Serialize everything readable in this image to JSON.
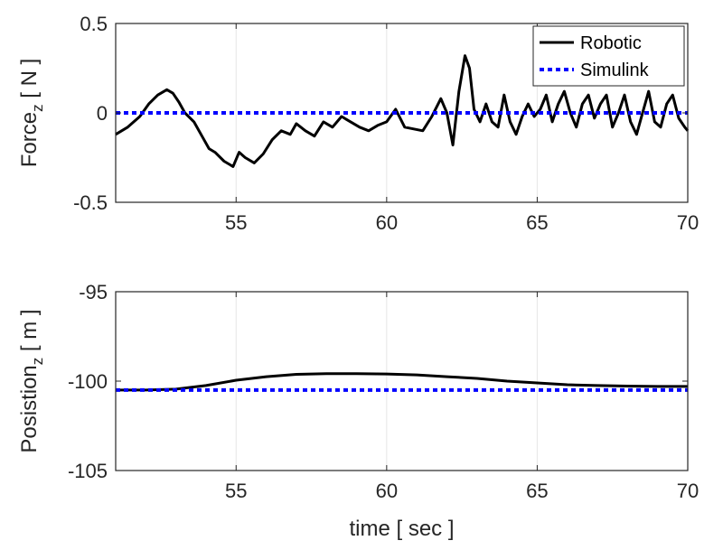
{
  "chart_data": [
    {
      "type": "line",
      "xlabel": "",
      "ylabel": "Force",
      "ylabel_subscript": "z",
      "ylabel_unit": " [ N ]",
      "xlim": [
        51,
        70
      ],
      "ylim": [
        -0.5,
        0.5
      ],
      "x_ticks": [
        "55",
        "60",
        "65",
        "70"
      ],
      "y_ticks": [
        "-0.5",
        "0",
        "0.5"
      ],
      "grid": "vertical",
      "legend": {
        "position": "top-right",
        "entries": [
          "Robotic",
          "Simulink"
        ]
      },
      "series": [
        {
          "name": "Robotic",
          "color": "#000000",
          "style": "solid",
          "x": [
            51.0,
            51.4,
            51.8,
            52.1,
            52.4,
            52.7,
            52.9,
            53.1,
            53.3,
            53.6,
            53.9,
            54.1,
            54.3,
            54.6,
            54.9,
            55.1,
            55.3,
            55.6,
            55.9,
            56.2,
            56.5,
            56.8,
            57.0,
            57.3,
            57.6,
            57.9,
            58.2,
            58.5,
            58.8,
            59.1,
            59.4,
            59.7,
            60.0,
            60.3,
            60.6,
            60.9,
            61.2,
            61.5,
            61.8,
            62.0,
            62.2,
            62.4,
            62.6,
            62.75,
            62.9,
            63.1,
            63.3,
            63.5,
            63.7,
            63.9,
            64.1,
            64.3,
            64.5,
            64.7,
            64.9,
            65.1,
            65.3,
            65.5,
            65.7,
            65.9,
            66.1,
            66.3,
            66.5,
            66.7,
            66.9,
            67.1,
            67.3,
            67.5,
            67.7,
            67.9,
            68.1,
            68.3,
            68.5,
            68.7,
            68.9,
            69.1,
            69.3,
            69.5,
            69.7,
            69.9,
            70.0
          ],
          "y": [
            -0.12,
            -0.08,
            -0.02,
            0.05,
            0.1,
            0.13,
            0.11,
            0.06,
            0.0,
            -0.05,
            -0.14,
            -0.2,
            -0.22,
            -0.27,
            -0.3,
            -0.22,
            -0.25,
            -0.28,
            -0.23,
            -0.15,
            -0.1,
            -0.12,
            -0.06,
            -0.1,
            -0.13,
            -0.05,
            -0.08,
            -0.02,
            -0.05,
            -0.08,
            -0.1,
            -0.07,
            -0.05,
            0.02,
            -0.08,
            -0.09,
            -0.1,
            -0.02,
            0.08,
            0.0,
            -0.18,
            0.12,
            0.32,
            0.25,
            0.02,
            -0.05,
            0.05,
            -0.05,
            -0.08,
            0.1,
            -0.05,
            -0.12,
            -0.02,
            0.05,
            -0.02,
            0.02,
            0.1,
            -0.05,
            0.05,
            0.12,
            0.0,
            -0.08,
            0.05,
            0.1,
            -0.03,
            0.05,
            0.1,
            -0.08,
            0.0,
            0.1,
            -0.05,
            -0.12,
            0.0,
            0.12,
            -0.05,
            -0.08,
            0.05,
            0.1,
            -0.03,
            -0.08,
            -0.1
          ]
        },
        {
          "name": "Simulink",
          "color": "#0000FF",
          "style": "dotted",
          "x": [
            51,
            70
          ],
          "y": [
            0,
            0
          ]
        }
      ]
    },
    {
      "type": "line",
      "xlabel": "time [ sec ]",
      "ylabel": "Posistion",
      "ylabel_subscript": "z",
      "ylabel_unit": " [ m ]",
      "xlim": [
        51,
        70
      ],
      "ylim": [
        -105,
        -95
      ],
      "x_ticks": [
        "55",
        "60",
        "65",
        "70"
      ],
      "y_ticks": [
        "-105",
        "-100",
        "-95"
      ],
      "grid": "vertical",
      "series": [
        {
          "name": "Robotic",
          "color": "#000000",
          "style": "solid",
          "x": [
            51,
            52,
            53,
            54,
            55,
            56,
            57,
            58,
            59,
            60,
            61,
            62,
            63,
            64,
            65,
            66,
            67,
            68,
            69,
            70
          ],
          "y": [
            -100.5,
            -100.5,
            -100.45,
            -100.25,
            -99.95,
            -99.75,
            -99.62,
            -99.58,
            -99.58,
            -99.6,
            -99.65,
            -99.75,
            -99.85,
            -100.0,
            -100.1,
            -100.2,
            -100.25,
            -100.28,
            -100.3,
            -100.3
          ]
        },
        {
          "name": "Simulink",
          "color": "#0000FF",
          "style": "dotted",
          "x": [
            51,
            70
          ],
          "y": [
            -100.5,
            -100.5
          ]
        }
      ]
    }
  ]
}
